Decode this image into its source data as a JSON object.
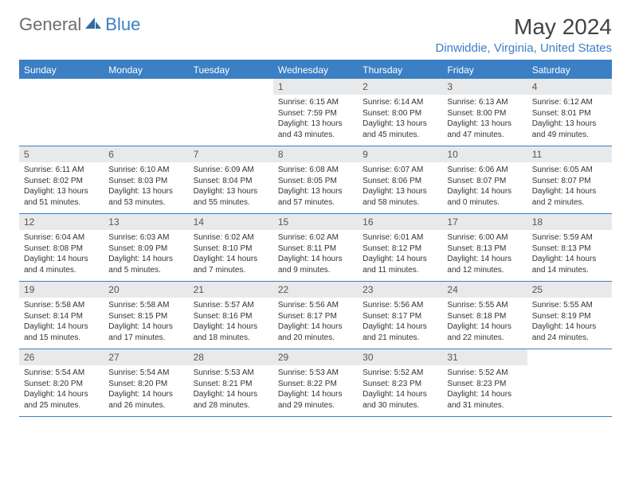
{
  "logo": {
    "general": "General",
    "blue": "Blue"
  },
  "title": "May 2024",
  "location": "Dinwiddie, Virginia, United States",
  "colors": {
    "accent": "#3b7fc4",
    "header_bg": "#3b7fc4",
    "daynum_bg": "#e8e9ea",
    "text": "#333333",
    "logo_gray": "#6b6d6e"
  },
  "weekdays": [
    "Sunday",
    "Monday",
    "Tuesday",
    "Wednesday",
    "Thursday",
    "Friday",
    "Saturday"
  ],
  "weeks": [
    [
      {
        "n": "",
        "sr": "",
        "ss": "",
        "dl": ""
      },
      {
        "n": "",
        "sr": "",
        "ss": "",
        "dl": ""
      },
      {
        "n": "",
        "sr": "",
        "ss": "",
        "dl": ""
      },
      {
        "n": "1",
        "sr": "Sunrise: 6:15 AM",
        "ss": "Sunset: 7:59 PM",
        "dl": "Daylight: 13 hours and 43 minutes."
      },
      {
        "n": "2",
        "sr": "Sunrise: 6:14 AM",
        "ss": "Sunset: 8:00 PM",
        "dl": "Daylight: 13 hours and 45 minutes."
      },
      {
        "n": "3",
        "sr": "Sunrise: 6:13 AM",
        "ss": "Sunset: 8:00 PM",
        "dl": "Daylight: 13 hours and 47 minutes."
      },
      {
        "n": "4",
        "sr": "Sunrise: 6:12 AM",
        "ss": "Sunset: 8:01 PM",
        "dl": "Daylight: 13 hours and 49 minutes."
      }
    ],
    [
      {
        "n": "5",
        "sr": "Sunrise: 6:11 AM",
        "ss": "Sunset: 8:02 PM",
        "dl": "Daylight: 13 hours and 51 minutes."
      },
      {
        "n": "6",
        "sr": "Sunrise: 6:10 AM",
        "ss": "Sunset: 8:03 PM",
        "dl": "Daylight: 13 hours and 53 minutes."
      },
      {
        "n": "7",
        "sr": "Sunrise: 6:09 AM",
        "ss": "Sunset: 8:04 PM",
        "dl": "Daylight: 13 hours and 55 minutes."
      },
      {
        "n": "8",
        "sr": "Sunrise: 6:08 AM",
        "ss": "Sunset: 8:05 PM",
        "dl": "Daylight: 13 hours and 57 minutes."
      },
      {
        "n": "9",
        "sr": "Sunrise: 6:07 AM",
        "ss": "Sunset: 8:06 PM",
        "dl": "Daylight: 13 hours and 58 minutes."
      },
      {
        "n": "10",
        "sr": "Sunrise: 6:06 AM",
        "ss": "Sunset: 8:07 PM",
        "dl": "Daylight: 14 hours and 0 minutes."
      },
      {
        "n": "11",
        "sr": "Sunrise: 6:05 AM",
        "ss": "Sunset: 8:07 PM",
        "dl": "Daylight: 14 hours and 2 minutes."
      }
    ],
    [
      {
        "n": "12",
        "sr": "Sunrise: 6:04 AM",
        "ss": "Sunset: 8:08 PM",
        "dl": "Daylight: 14 hours and 4 minutes."
      },
      {
        "n": "13",
        "sr": "Sunrise: 6:03 AM",
        "ss": "Sunset: 8:09 PM",
        "dl": "Daylight: 14 hours and 5 minutes."
      },
      {
        "n": "14",
        "sr": "Sunrise: 6:02 AM",
        "ss": "Sunset: 8:10 PM",
        "dl": "Daylight: 14 hours and 7 minutes."
      },
      {
        "n": "15",
        "sr": "Sunrise: 6:02 AM",
        "ss": "Sunset: 8:11 PM",
        "dl": "Daylight: 14 hours and 9 minutes."
      },
      {
        "n": "16",
        "sr": "Sunrise: 6:01 AM",
        "ss": "Sunset: 8:12 PM",
        "dl": "Daylight: 14 hours and 11 minutes."
      },
      {
        "n": "17",
        "sr": "Sunrise: 6:00 AM",
        "ss": "Sunset: 8:13 PM",
        "dl": "Daylight: 14 hours and 12 minutes."
      },
      {
        "n": "18",
        "sr": "Sunrise: 5:59 AM",
        "ss": "Sunset: 8:13 PM",
        "dl": "Daylight: 14 hours and 14 minutes."
      }
    ],
    [
      {
        "n": "19",
        "sr": "Sunrise: 5:58 AM",
        "ss": "Sunset: 8:14 PM",
        "dl": "Daylight: 14 hours and 15 minutes."
      },
      {
        "n": "20",
        "sr": "Sunrise: 5:58 AM",
        "ss": "Sunset: 8:15 PM",
        "dl": "Daylight: 14 hours and 17 minutes."
      },
      {
        "n": "21",
        "sr": "Sunrise: 5:57 AM",
        "ss": "Sunset: 8:16 PM",
        "dl": "Daylight: 14 hours and 18 minutes."
      },
      {
        "n": "22",
        "sr": "Sunrise: 5:56 AM",
        "ss": "Sunset: 8:17 PM",
        "dl": "Daylight: 14 hours and 20 minutes."
      },
      {
        "n": "23",
        "sr": "Sunrise: 5:56 AM",
        "ss": "Sunset: 8:17 PM",
        "dl": "Daylight: 14 hours and 21 minutes."
      },
      {
        "n": "24",
        "sr": "Sunrise: 5:55 AM",
        "ss": "Sunset: 8:18 PM",
        "dl": "Daylight: 14 hours and 22 minutes."
      },
      {
        "n": "25",
        "sr": "Sunrise: 5:55 AM",
        "ss": "Sunset: 8:19 PM",
        "dl": "Daylight: 14 hours and 24 minutes."
      }
    ],
    [
      {
        "n": "26",
        "sr": "Sunrise: 5:54 AM",
        "ss": "Sunset: 8:20 PM",
        "dl": "Daylight: 14 hours and 25 minutes."
      },
      {
        "n": "27",
        "sr": "Sunrise: 5:54 AM",
        "ss": "Sunset: 8:20 PM",
        "dl": "Daylight: 14 hours and 26 minutes."
      },
      {
        "n": "28",
        "sr": "Sunrise: 5:53 AM",
        "ss": "Sunset: 8:21 PM",
        "dl": "Daylight: 14 hours and 28 minutes."
      },
      {
        "n": "29",
        "sr": "Sunrise: 5:53 AM",
        "ss": "Sunset: 8:22 PM",
        "dl": "Daylight: 14 hours and 29 minutes."
      },
      {
        "n": "30",
        "sr": "Sunrise: 5:52 AM",
        "ss": "Sunset: 8:23 PM",
        "dl": "Daylight: 14 hours and 30 minutes."
      },
      {
        "n": "31",
        "sr": "Sunrise: 5:52 AM",
        "ss": "Sunset: 8:23 PM",
        "dl": "Daylight: 14 hours and 31 minutes."
      },
      {
        "n": "",
        "sr": "",
        "ss": "",
        "dl": ""
      }
    ]
  ]
}
